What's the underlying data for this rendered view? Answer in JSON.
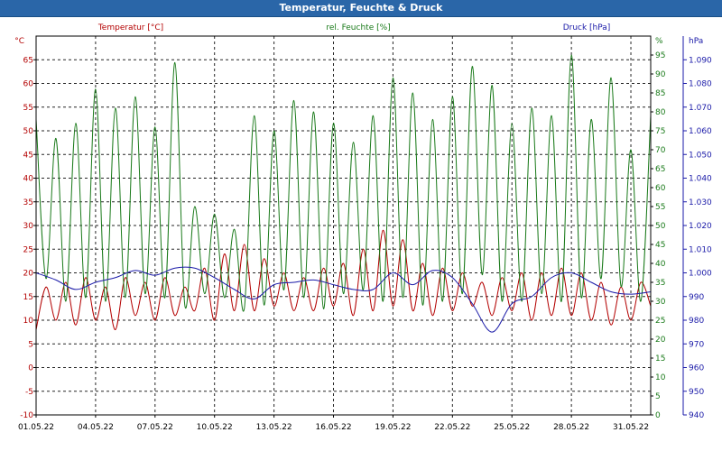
{
  "window": {
    "title": "Temperatur, Feuchte & Druck"
  },
  "chart_data": {
    "type": "line",
    "title": "Temperatur, Feuchte & Druck",
    "x_tick_labels": [
      "01.05.22",
      "04.05.22",
      "07.05.22",
      "10.05.22",
      "13.05.22",
      "16.05.22",
      "19.05.22",
      "22.05.22",
      "25.05.22",
      "28.05.22",
      "31.05.22"
    ],
    "x_range_days": [
      0,
      31
    ],
    "grid": true,
    "axes": {
      "temperature": {
        "label": "Temperatur [°C]",
        "unit": "°C",
        "ylim": [
          -10,
          70
        ],
        "ticks": [
          -10,
          -5,
          0,
          5,
          10,
          15,
          20,
          25,
          30,
          35,
          40,
          45,
          50,
          55,
          60,
          65
        ],
        "color": "#b30000"
      },
      "humidity": {
        "label": "rel. Feuchte [%]",
        "unit": "%",
        "ylim": [
          0,
          100
        ],
        "ticks": [
          0,
          5,
          10,
          15,
          20,
          25,
          30,
          35,
          40,
          45,
          50,
          55,
          60,
          65,
          70,
          75,
          80,
          85,
          90,
          95
        ],
        "color": "#1a7a1a"
      },
      "pressure": {
        "label": "Druck [hPa]",
        "unit": "hPa",
        "ylim": [
          940,
          1100
        ],
        "ticks": [
          940,
          950,
          960,
          970,
          980,
          990,
          1000,
          1010,
          1020,
          1030,
          1040,
          1050,
          1060,
          1070,
          1080,
          1090
        ],
        "tick_labels": [
          "940",
          "950",
          "960",
          "970",
          "980",
          "990",
          "1.000",
          "1.010",
          "1.020",
          "1.030",
          "1.040",
          "1.050",
          "1.060",
          "1.070",
          "1.080",
          "1.090"
        ],
        "color": "#1a1aa8"
      }
    },
    "series": [
      {
        "name": "Temperatur [°C]",
        "axis": "temperature",
        "color": "#b30000",
        "x": [
          0,
          0.5,
          1,
          1.5,
          2,
          2.5,
          3,
          3.5,
          4,
          4.5,
          5,
          5.5,
          6,
          6.5,
          7,
          7.5,
          8,
          8.5,
          9,
          9.5,
          10,
          10.5,
          11,
          11.5,
          12,
          12.5,
          13,
          13.5,
          14,
          14.5,
          15,
          15.5,
          16,
          16.5,
          17,
          17.5,
          18,
          18.5,
          19,
          19.5,
          20,
          20.5,
          21,
          21.5,
          22,
          22.5,
          23,
          23.5,
          24,
          24.5,
          25,
          25.5,
          26,
          26.5,
          27,
          27.5,
          28,
          28.5,
          29,
          29.5,
          30,
          30.5,
          31
        ],
        "values": [
          8,
          17,
          10,
          18,
          9,
          19,
          10,
          17,
          8,
          19,
          11,
          18,
          10,
          19,
          11,
          17,
          12,
          21,
          10,
          24,
          12,
          26,
          12,
          23,
          13,
          20,
          12,
          19,
          12,
          21,
          13,
          22,
          11,
          25,
          12,
          29,
          13,
          27,
          12,
          22,
          11,
          21,
          12,
          20,
          13,
          18,
          11,
          19,
          12,
          20,
          10,
          20,
          11,
          21,
          11,
          20,
          10,
          18,
          9,
          17,
          10,
          18,
          13
        ]
      },
      {
        "name": "rel. Feuchte [%]",
        "axis": "humidity",
        "color": "#1a7a1a",
        "x": [
          0,
          0.5,
          1,
          1.5,
          2,
          2.5,
          3,
          3.5,
          4,
          4.5,
          5,
          5.5,
          6,
          6.5,
          7,
          7.5,
          8,
          8.5,
          9,
          9.5,
          10,
          10.5,
          11,
          11.5,
          12,
          12.5,
          13,
          13.5,
          14,
          14.5,
          15,
          15.5,
          16,
          16.5,
          17,
          17.5,
          18,
          18.5,
          19,
          19.5,
          20,
          20.5,
          21,
          21.5,
          22,
          22.5,
          23,
          23.5,
          24,
          24.5,
          25,
          25.5,
          26,
          26.5,
          27,
          27.5,
          28,
          28.5,
          29,
          29.5,
          30,
          30.5,
          31
        ],
        "values": [
          78,
          36,
          73,
          30,
          77,
          31,
          86,
          30,
          81,
          31,
          84,
          32,
          76,
          31,
          93,
          29,
          55,
          32,
          53,
          31,
          49,
          28,
          79,
          29,
          75,
          33,
          83,
          31,
          80,
          28,
          77,
          32,
          72,
          33,
          79,
          30,
          89,
          31,
          85,
          29,
          78,
          30,
          84,
          32,
          92,
          37,
          87,
          30,
          77,
          30,
          81,
          32,
          79,
          30,
          95,
          31,
          78,
          36,
          89,
          34,
          70,
          30,
          79
        ]
      },
      {
        "name": "Druck [hPa]",
        "axis": "pressure",
        "color": "#1a1aa8",
        "x": [
          0,
          1,
          2,
          3,
          4,
          5,
          6,
          7,
          8,
          9,
          10,
          11,
          12,
          13,
          14,
          15,
          16,
          17,
          18,
          19,
          20,
          21,
          22,
          23,
          24,
          25,
          26,
          27,
          28,
          29,
          30,
          31
        ],
        "values": [
          1000,
          997,
          993,
          996,
          998,
          1001,
          999,
          1002,
          1002,
          998,
          993,
          989,
          995,
          996,
          997,
          995,
          993,
          993,
          1000,
          995,
          1001,
          998,
          987,
          975,
          987,
          990,
          998,
          1000,
          996,
          992,
          991,
          992
        ]
      }
    ]
  }
}
